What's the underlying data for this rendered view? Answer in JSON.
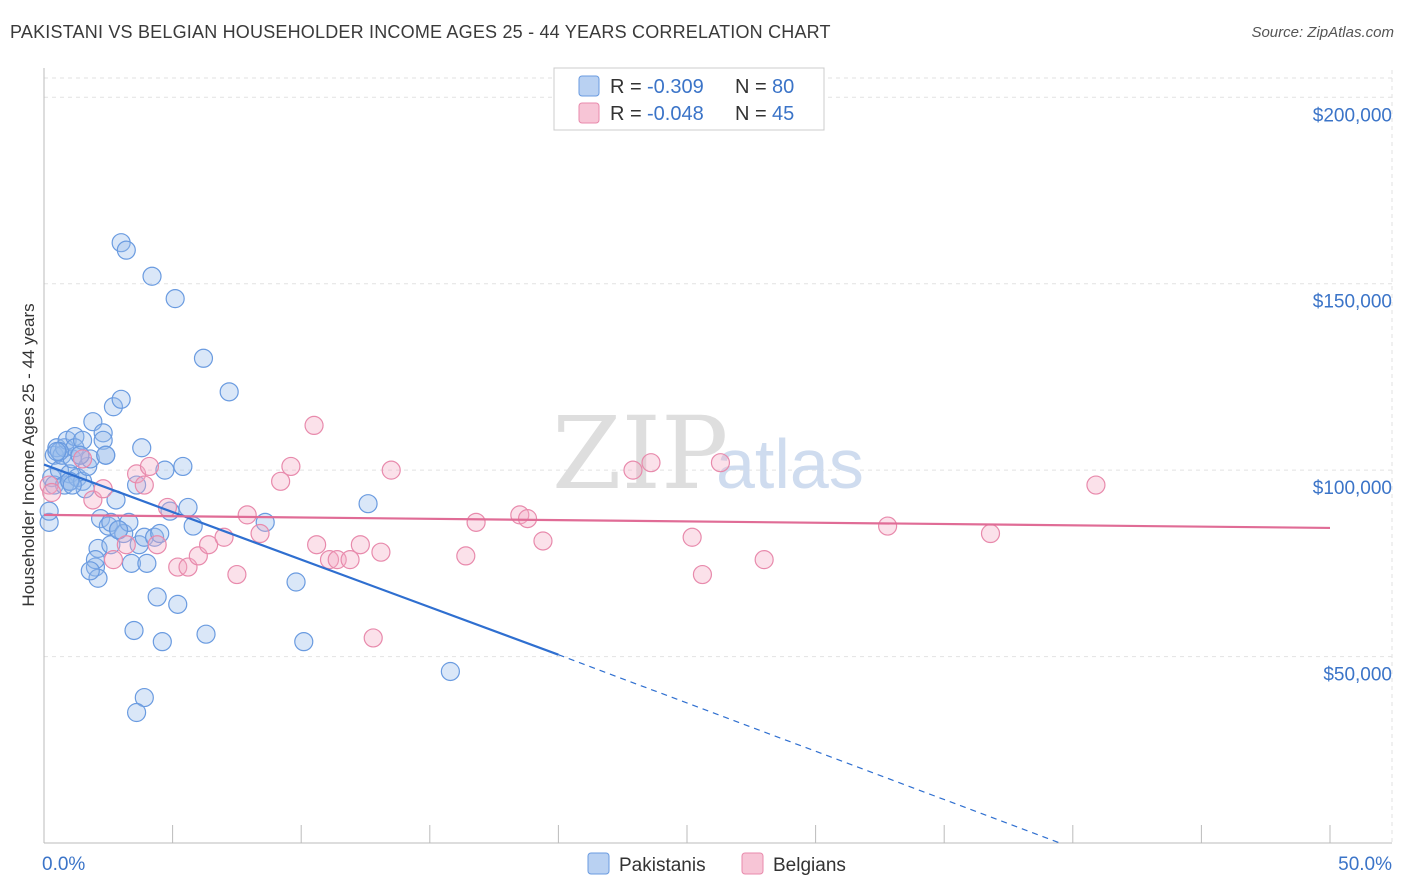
{
  "header": {
    "title": "PAKISTANI VS BELGIAN HOUSEHOLDER INCOME AGES 25 - 44 YEARS CORRELATION CHART",
    "source": "Source: ZipAtlas.com"
  },
  "watermark": {
    "zip": "ZIP",
    "atlas": "atlas"
  },
  "legend": {
    "items": [
      {
        "r_label": "R =",
        "r_value": "-0.309",
        "n_label": "N =",
        "n_value": "80"
      },
      {
        "r_label": "R =",
        "r_value": "-0.048",
        "n_label": "N =",
        "n_value": "45"
      }
    ]
  },
  "chart_data": {
    "type": "scatter",
    "title": "PAKISTANI VS BELGIAN HOUSEHOLDER INCOME AGES 25 - 44 YEARS CORRELATION CHART",
    "xlabel": "",
    "ylabel": "Householder Income Ages 25 - 44 years",
    "xlim": [
      0,
      50
    ],
    "ylim": [
      0,
      210000
    ],
    "x_tick_labels": [
      "0.0%",
      "50.0%"
    ],
    "y_ticks": [
      50000,
      100000,
      150000,
      200000
    ],
    "y_tick_labels": [
      "$50,000",
      "$100,000",
      "$150,000",
      "$200,000"
    ],
    "grid": true,
    "legend_position": "top-center",
    "colors": {
      "pakistanis": "#3b74c8",
      "belgians": "#e06c96"
    },
    "series": [
      {
        "name": "Pakistanis",
        "color": "#3b74c8",
        "r": -0.309,
        "n": 80,
        "trend": {
          "x0": 0,
          "y0": 101500,
          "x1": 20,
          "y1": 50500,
          "dash_to_x": 39.5,
          "dash_to_y": 0
        },
        "points": [
          [
            0.2,
            86000
          ],
          [
            0.2,
            89000
          ],
          [
            0.3,
            98000
          ],
          [
            0.4,
            96000
          ],
          [
            0.4,
            104000
          ],
          [
            0.5,
            106000
          ],
          [
            0.6,
            100000
          ],
          [
            0.7,
            104000
          ],
          [
            0.8,
            106000
          ],
          [
            0.8,
            96000
          ],
          [
            0.9,
            108000
          ],
          [
            1.0,
            99000
          ],
          [
            1.0,
            97000
          ],
          [
            1.1,
            103000
          ],
          [
            1.2,
            109000
          ],
          [
            1.2,
            106000
          ],
          [
            1.3,
            98000
          ],
          [
            1.4,
            104000
          ],
          [
            1.5,
            108000
          ],
          [
            1.5,
            97000
          ],
          [
            1.6,
            95000
          ],
          [
            1.7,
            101000
          ],
          [
            1.8,
            103000
          ],
          [
            1.9,
            113000
          ],
          [
            2.0,
            74000
          ],
          [
            2.1,
            71000
          ],
          [
            2.1,
            79000
          ],
          [
            2.2,
            87000
          ],
          [
            2.3,
            110000
          ],
          [
            2.3,
            108000
          ],
          [
            2.4,
            104000
          ],
          [
            2.5,
            85000
          ],
          [
            2.6,
            80000
          ],
          [
            2.6,
            86000
          ],
          [
            2.7,
            117000
          ],
          [
            2.8,
            92000
          ],
          [
            2.9,
            84000
          ],
          [
            3.0,
            161000
          ],
          [
            3.1,
            83000
          ],
          [
            3.2,
            159000
          ],
          [
            3.3,
            86000
          ],
          [
            3.4,
            75000
          ],
          [
            3.6,
            96000
          ],
          [
            3.7,
            80000
          ],
          [
            3.8,
            106000
          ],
          [
            3.9,
            82000
          ],
          [
            4.0,
            75000
          ],
          [
            4.2,
            152000
          ],
          [
            4.3,
            82000
          ],
          [
            4.4,
            66000
          ],
          [
            4.5,
            83000
          ],
          [
            4.6,
            54000
          ],
          [
            4.7,
            100000
          ],
          [
            4.9,
            89000
          ],
          [
            5.1,
            146000
          ],
          [
            5.2,
            64000
          ],
          [
            5.4,
            101000
          ],
          [
            5.6,
            90000
          ],
          [
            5.8,
            85000
          ],
          [
            6.3,
            56000
          ],
          [
            6.2,
            130000
          ],
          [
            7.2,
            121000
          ],
          [
            8.6,
            86000
          ],
          [
            9.8,
            70000
          ],
          [
            10.1,
            54000
          ],
          [
            12.6,
            91000
          ],
          [
            15.8,
            46000
          ],
          [
            2.9,
            84000
          ],
          [
            3.0,
            119000
          ],
          [
            1.0,
            97000
          ],
          [
            0.6,
            105000
          ],
          [
            1.4,
            104000
          ],
          [
            2.0,
            76000
          ],
          [
            3.5,
            57000
          ],
          [
            3.9,
            39000
          ],
          [
            3.6,
            35000
          ],
          [
            1.8,
            73000
          ],
          [
            0.5,
            105000
          ],
          [
            1.1,
            96000
          ],
          [
            2.4,
            104000
          ]
        ]
      },
      {
        "name": "Belgians",
        "color": "#e06c96",
        "r": -0.048,
        "n": 45,
        "trend": {
          "x0": 0,
          "y0": 88000,
          "x1": 50,
          "y1": 84500
        },
        "points": [
          [
            0.2,
            96000
          ],
          [
            0.3,
            94000
          ],
          [
            1.5,
            103000
          ],
          [
            1.9,
            92000
          ],
          [
            2.3,
            95000
          ],
          [
            2.7,
            76000
          ],
          [
            3.2,
            80000
          ],
          [
            3.6,
            99000
          ],
          [
            3.9,
            96000
          ],
          [
            4.1,
            101000
          ],
          [
            4.4,
            80000
          ],
          [
            4.8,
            90000
          ],
          [
            5.2,
            74000
          ],
          [
            5.6,
            74000
          ],
          [
            6.0,
            77000
          ],
          [
            6.4,
            80000
          ],
          [
            7.0,
            82000
          ],
          [
            7.5,
            72000
          ],
          [
            7.9,
            88000
          ],
          [
            8.4,
            83000
          ],
          [
            9.2,
            97000
          ],
          [
            9.6,
            101000
          ],
          [
            10.6,
            80000
          ],
          [
            10.5,
            112000
          ],
          [
            11.1,
            76000
          ],
          [
            11.4,
            76000
          ],
          [
            11.9,
            76000
          ],
          [
            12.3,
            80000
          ],
          [
            12.8,
            55000
          ],
          [
            13.1,
            78000
          ],
          [
            13.5,
            100000
          ],
          [
            16.4,
            77000
          ],
          [
            16.8,
            86000
          ],
          [
            18.5,
            88000
          ],
          [
            18.8,
            87000
          ],
          [
            19.4,
            81000
          ],
          [
            22.9,
            100000
          ],
          [
            23.6,
            102000
          ],
          [
            25.2,
            82000
          ],
          [
            25.6,
            72000
          ],
          [
            26.3,
            102000
          ],
          [
            28.0,
            76000
          ],
          [
            32.8,
            85000
          ],
          [
            36.8,
            83000
          ],
          [
            40.9,
            96000
          ]
        ]
      }
    ]
  }
}
